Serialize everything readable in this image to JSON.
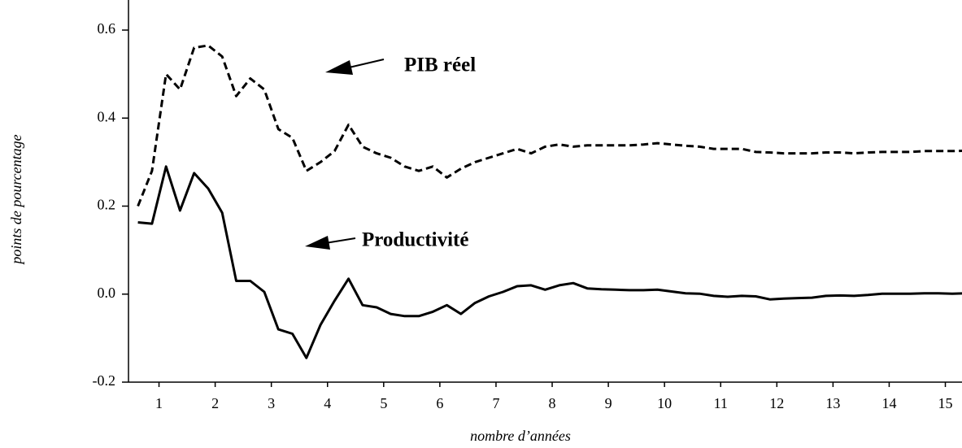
{
  "chart_data": {
    "type": "line",
    "xlabel": "nombre d’années",
    "ylabel": "points de pourcentage",
    "annotations": [
      "PIB réel",
      "Productivité"
    ],
    "x": [
      0.625,
      0.875,
      1.125,
      1.375,
      1.625,
      1.875,
      2.125,
      2.375,
      2.625,
      2.875,
      3.125,
      3.375,
      3.625,
      3.875,
      4.125,
      4.375,
      4.625,
      4.875,
      5.125,
      5.375,
      5.625,
      5.875,
      6.125,
      6.375,
      6.625,
      6.875,
      7.125,
      7.375,
      7.625,
      7.875,
      8.125,
      8.375,
      8.625,
      8.875,
      9.125,
      9.375,
      9.625,
      9.875,
      10.125,
      10.375,
      10.625,
      10.875,
      11.125,
      11.375,
      11.625,
      11.875,
      12.125,
      12.375,
      12.625,
      12.875,
      13.125,
      13.375,
      13.625,
      13.875,
      14.125,
      14.375,
      14.625,
      14.875,
      15.125,
      15.375
    ],
    "series": [
      {
        "name": "PIB réel",
        "color": "#000000",
        "dash": true,
        "values": [
          0.2,
          0.28,
          0.5,
          0.465,
          0.56,
          0.565,
          0.54,
          0.45,
          0.49,
          0.465,
          0.375,
          0.355,
          0.28,
          0.3,
          0.325,
          0.385,
          0.335,
          0.32,
          0.31,
          0.29,
          0.28,
          0.29,
          0.265,
          0.285,
          0.3,
          0.31,
          0.32,
          0.33,
          0.32,
          0.335,
          0.34,
          0.335,
          0.338,
          0.338,
          0.338,
          0.338,
          0.34,
          0.343,
          0.34,
          0.337,
          0.335,
          0.33,
          0.33,
          0.33,
          0.323,
          0.322,
          0.32,
          0.32,
          0.32,
          0.322,
          0.322,
          0.32,
          0.322,
          0.323,
          0.323,
          0.323,
          0.325,
          0.325,
          0.325,
          0.326
        ]
      },
      {
        "name": "Productivité",
        "color": "#000000",
        "dash": false,
        "values": [
          0.163,
          0.16,
          0.29,
          0.19,
          0.275,
          0.24,
          0.185,
          0.03,
          0.03,
          0.005,
          -0.08,
          -0.09,
          -0.145,
          -0.07,
          -0.015,
          0.035,
          -0.025,
          -0.03,
          -0.045,
          -0.05,
          -0.05,
          -0.04,
          -0.025,
          -0.045,
          -0.02,
          -0.005,
          0.005,
          0.018,
          0.02,
          0.01,
          0.02,
          0.025,
          0.013,
          0.011,
          0.01,
          0.009,
          0.009,
          0.01,
          0.006,
          0.002,
          0.001,
          -0.004,
          -0.006,
          -0.004,
          -0.005,
          -0.012,
          -0.01,
          -0.009,
          -0.008,
          -0.004,
          -0.003,
          -0.004,
          -0.002,
          0.001,
          0.001,
          0.001,
          0.002,
          0.002,
          0.001,
          0.002
        ]
      }
    ],
    "xlim": [
      0.5,
      15.5
    ],
    "xticks": [
      1,
      2,
      3,
      4,
      5,
      6,
      7,
      8,
      9,
      10,
      11,
      12,
      13,
      14,
      15
    ],
    "ylim": [
      -0.2,
      0.6
    ],
    "yticks": [
      {
        "value": -0.2,
        "label": "-0.2"
      },
      {
        "value": 0,
        "label": "0.0"
      },
      {
        "value": 0.2,
        "label": "0.2"
      },
      {
        "value": 0.4,
        "label": "0.4"
      },
      {
        "value": 0.6,
        "label": "0.6"
      }
    ]
  }
}
